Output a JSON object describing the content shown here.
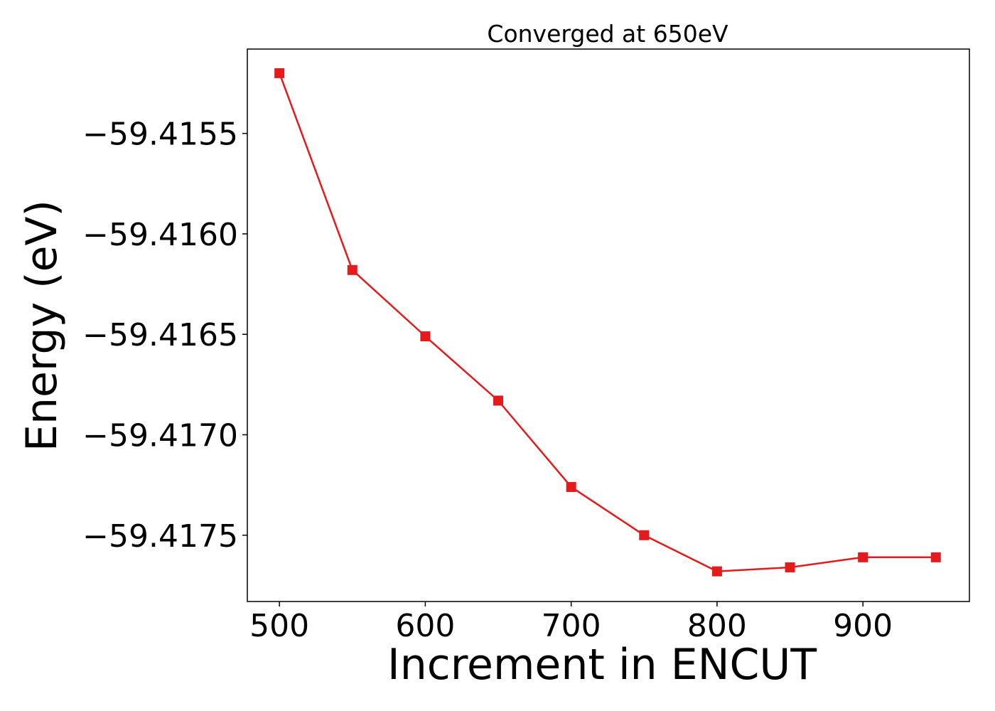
{
  "chart_data": {
    "type": "line",
    "title": "Converged at 650eV",
    "xlabel": "Increment in ENCUT",
    "ylabel": "Energy (eV)",
    "x": [
      500,
      550,
      600,
      650,
      700,
      750,
      800,
      850,
      900,
      950
    ],
    "series": [
      {
        "values": [
          -59.4152,
          -59.41618,
          -59.41651,
          -59.41683,
          -59.41726,
          -59.4175,
          -59.41768,
          -59.41766,
          -59.41761,
          -59.41761
        ],
        "color": "#e41a1c",
        "marker": "square"
      }
    ],
    "xlim": [
      478,
      973
    ],
    "ylim": [
      -59.41783,
      -59.41508
    ],
    "xticks": [
      500,
      600,
      700,
      800,
      900
    ],
    "xtick_labels": [
      "500",
      "600",
      "700",
      "800",
      "900"
    ],
    "yticks": [
      -59.4155,
      -59.416,
      -59.4165,
      -59.417,
      -59.4175
    ],
    "ytick_labels": [
      "−59.4155",
      "−59.4160",
      "−59.4165",
      "−59.4170",
      "−59.4175"
    ],
    "grid": false,
    "legend": false
  }
}
